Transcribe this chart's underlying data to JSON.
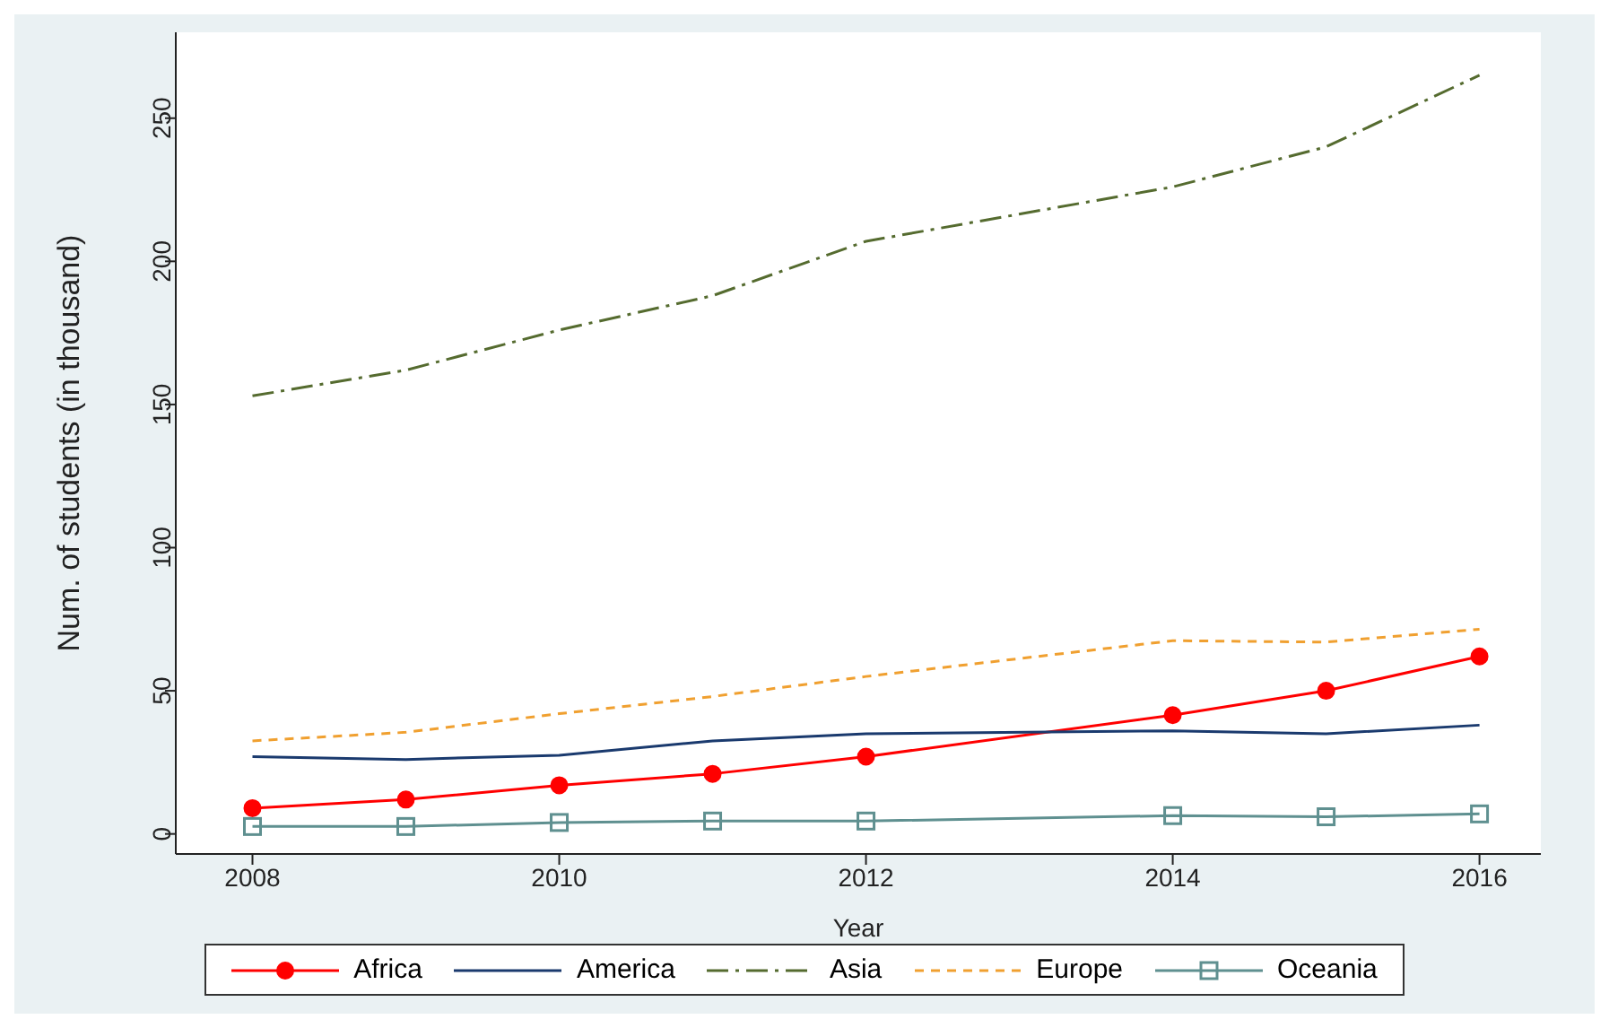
{
  "chart_data": {
    "type": "line",
    "xlabel": "Year",
    "ylabel": "Num. of students (in thousand)",
    "x": [
      2008,
      2009,
      2010,
      2011,
      2012,
      2014,
      2015,
      2016
    ],
    "xlim": [
      2007.5,
      2016.4
    ],
    "xticks": [
      2008,
      2010,
      2012,
      2014,
      2016
    ],
    "ylim": [
      -7,
      280
    ],
    "yticks": [
      0,
      50,
      100,
      150,
      200,
      250
    ],
    "grid": false,
    "legend": "bottom",
    "series": [
      {
        "name": "Africa",
        "color": "#ff0000",
        "marker": "circle",
        "line_style": "solid",
        "values": [
          9,
          12,
          17,
          21,
          27,
          41.5,
          50,
          62
        ]
      },
      {
        "name": "America",
        "color": "#1a3a6e",
        "marker": "none",
        "line_style": "solid",
        "values": [
          27,
          26,
          27.5,
          32.5,
          35,
          36,
          35,
          38
        ]
      },
      {
        "name": "Asia",
        "color": "#556b2f",
        "marker": "none",
        "line_style": "dashdot",
        "values": [
          153,
          162,
          176,
          188,
          207,
          226,
          240,
          265
        ]
      },
      {
        "name": "Europe",
        "color": "#f0a030",
        "marker": "none",
        "line_style": "dashed",
        "values": [
          32.5,
          35.5,
          42,
          48,
          55,
          67.5,
          67,
          71.5
        ]
      },
      {
        "name": "Oceania",
        "color": "#5f9090",
        "marker": "square",
        "line_style": "solid",
        "values": [
          2.6,
          2.6,
          4,
          4.5,
          4.5,
          6.4,
          6,
          7
        ]
      }
    ]
  }
}
